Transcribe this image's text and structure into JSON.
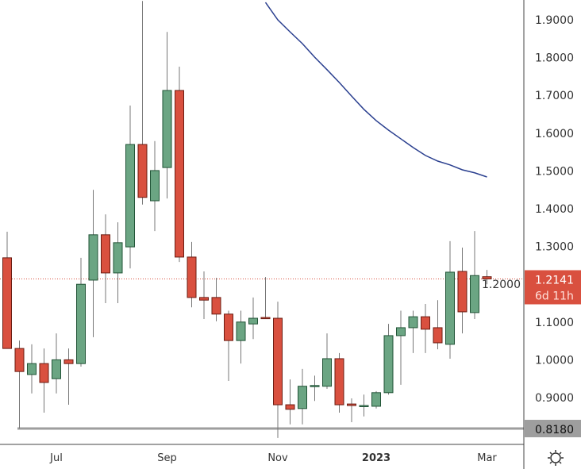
{
  "chart_data": {
    "type": "candlestick",
    "x_labels": [
      {
        "label": "Jul",
        "index": 4
      },
      {
        "label": "Sep",
        "index": 13
      },
      {
        "label": "Nov",
        "index": 22
      },
      {
        "label": "2023",
        "index": 30,
        "bold": true
      },
      {
        "label": "Mar",
        "index": 39
      }
    ],
    "y_ticks": [
      "0.9000",
      "1.0000",
      "1.1000",
      "1.2000",
      "1.3000",
      "1.4000",
      "1.5000",
      "1.6000",
      "1.7000",
      "1.8000",
      "1.9000"
    ],
    "ylim": [
      0.78,
      1.95
    ],
    "ohlc": [
      [
        1.27,
        1.339,
        1.03,
        1.03
      ],
      [
        1.03,
        1.051,
        0.818,
        0.969
      ],
      [
        0.961,
        1.041,
        0.911,
        0.99
      ],
      [
        0.99,
        1.03,
        0.86,
        0.94
      ],
      [
        0.95,
        1.07,
        0.911,
        1.0
      ],
      [
        1.0,
        1.03,
        0.881,
        0.99
      ],
      [
        0.99,
        1.27,
        0.982,
        1.2
      ],
      [
        1.211,
        1.45,
        1.06,
        1.331
      ],
      [
        1.331,
        1.385,
        1.15,
        1.23
      ],
      [
        1.23,
        1.364,
        1.15,
        1.31
      ],
      [
        1.299,
        1.673,
        1.242,
        1.57
      ],
      [
        1.57,
        1.95,
        1.411,
        1.43
      ],
      [
        1.421,
        1.579,
        1.341,
        1.501
      ],
      [
        1.509,
        1.868,
        1.427,
        1.713
      ],
      [
        1.713,
        1.776,
        1.259,
        1.272
      ],
      [
        1.272,
        1.312,
        1.139,
        1.165
      ],
      [
        1.165,
        1.234,
        1.108,
        1.158
      ],
      [
        1.165,
        1.217,
        1.102,
        1.121
      ],
      [
        1.121,
        1.13,
        0.944,
        1.051
      ],
      [
        1.051,
        1.13,
        0.99,
        1.1
      ],
      [
        1.095,
        1.165,
        1.055,
        1.11
      ],
      [
        1.112,
        1.219,
        1.108,
        1.11
      ],
      [
        1.11,
        1.154,
        0.793,
        0.881
      ],
      [
        0.881,
        0.948,
        0.829,
        0.869
      ],
      [
        0.871,
        0.976,
        0.829,
        0.93
      ],
      [
        0.93,
        0.958,
        0.891,
        0.932
      ],
      [
        0.93,
        1.07,
        0.923,
        1.003
      ],
      [
        1.003,
        1.018,
        0.86,
        0.881
      ],
      [
        0.883,
        0.898,
        0.835,
        0.879
      ],
      [
        0.879,
        0.908,
        0.85,
        0.879
      ],
      [
        0.877,
        0.917,
        0.871,
        0.913
      ],
      [
        0.913,
        1.095,
        0.908,
        1.064
      ],
      [
        1.064,
        1.13,
        0.934,
        1.085
      ],
      [
        1.085,
        1.13,
        1.018,
        1.114
      ],
      [
        1.114,
        1.148,
        1.018,
        1.081
      ],
      [
        1.085,
        1.158,
        1.028,
        1.045
      ],
      [
        1.041,
        1.314,
        1.003,
        1.232
      ],
      [
        1.234,
        1.297,
        1.07,
        1.127
      ],
      [
        1.125,
        1.341,
        1.108,
        1.223
      ],
      [
        1.22,
        1.238,
        1.2,
        1.2141
      ]
    ],
    "moving_average": {
      "start_index": 21,
      "values": [
        1.946,
        1.9,
        1.868,
        1.837,
        1.801,
        1.768,
        1.734,
        1.698,
        1.663,
        1.633,
        1.608,
        1.585,
        1.562,
        1.541,
        1.526,
        1.516,
        1.503,
        1.495,
        1.484
      ],
      "color": "#2a3f8f"
    },
    "last_price": {
      "value": 1.2141,
      "label": "1.2141",
      "countdown": "6d 11h",
      "color": "#d9503f"
    },
    "horizontal_line": {
      "value": 0.818,
      "label": "0.8180",
      "color": "#9e9e9e"
    },
    "colors": {
      "up": "#6ba583",
      "up_border": "#225437",
      "down": "#d9503f",
      "down_border": "#6b1c12",
      "wick": "#777777"
    }
  },
  "toolbar": {
    "settings_icon": "gear-icon"
  }
}
